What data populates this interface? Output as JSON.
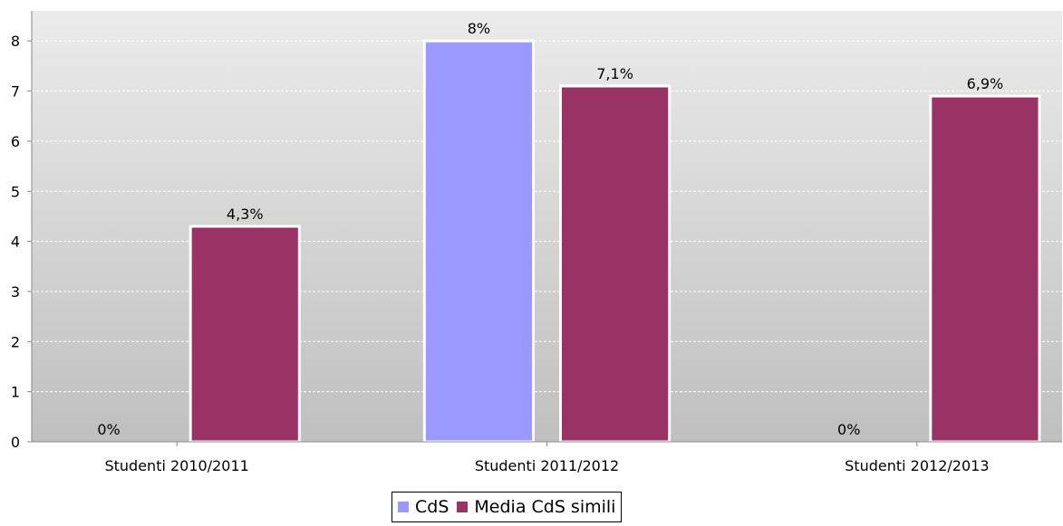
{
  "chart_data": {
    "type": "bar",
    "categories": [
      "Studenti 2010/2011",
      "Studenti 2011/2012",
      "Studenti 2012/2013"
    ],
    "series": [
      {
        "name": "CdS",
        "color": "#9999ff",
        "values": [
          0,
          8,
          0
        ],
        "labels": [
          "0%",
          "8%",
          "0%"
        ]
      },
      {
        "name": "Media CdS simili",
        "color": "#993366",
        "values": [
          4.3,
          7.1,
          6.9
        ],
        "labels": [
          "4,3%",
          "7,1%",
          "6,9%"
        ]
      }
    ],
    "title": "",
    "xlabel": "",
    "ylabel": "",
    "ylim": [
      0,
      8.6
    ],
    "yticks": [
      0,
      1,
      2,
      3,
      4,
      5,
      6,
      7,
      8
    ],
    "grid": true,
    "legend_position": "bottom-center",
    "background_gradient": [
      "#ebebeb",
      "#bfbfbf"
    ]
  }
}
